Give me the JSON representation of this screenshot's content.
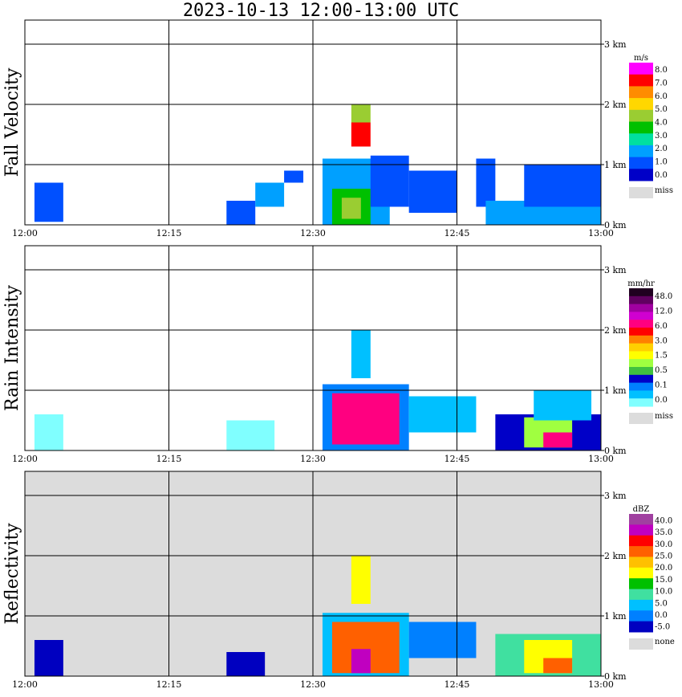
{
  "title": "2023-10-13   12:00-13:00 UTC",
  "colors": {
    "frame": "#000000",
    "missing": "#dcdcdc",
    "panel_bg_reflectivity": "#dcdcdc"
  },
  "chart_data": [
    {
      "type": "heatmap",
      "ylabel": "Fall Velocity",
      "x_tick_labels": [
        "12:00",
        "12:15",
        "12:30",
        "12:45",
        "13:00"
      ],
      "y_tick_labels": [
        "0 km",
        "1 km",
        "2 km",
        "3 km"
      ],
      "ylim": [
        0,
        3.4
      ],
      "grid": true,
      "colorbar": {
        "unit": "m/s",
        "labels": [
          "8.0",
          "7.0",
          "6.0",
          "5.0",
          "4.0",
          "3.0",
          "2.0",
          "1.0",
          "0.0"
        ],
        "colors": [
          "#ff00ff",
          "#ff0000",
          "#ff8c00",
          "#ffd700",
          "#9acd32",
          "#00c000",
          "#00e0a0",
          "#00a0ff",
          "#0050ff",
          "#0000c8"
        ],
        "missing_label": "miss"
      },
      "regions": [
        {
          "t0": 1,
          "t1": 4,
          "h0": 0.05,
          "h1": 0.7,
          "level": 8
        },
        {
          "t0": 21,
          "t1": 24,
          "h0": 0,
          "h1": 0.4,
          "level": 8
        },
        {
          "t0": 24,
          "t1": 27,
          "h0": 0.3,
          "h1": 0.7,
          "level": 7
        },
        {
          "t0": 27,
          "t1": 29,
          "h0": 0.7,
          "h1": 0.9,
          "level": 8
        },
        {
          "t0": 31,
          "t1": 38,
          "h0": 0,
          "h1": 1.1,
          "level": 7
        },
        {
          "t0": 32,
          "t1": 36,
          "h0": 0,
          "h1": 0.6,
          "level": 5
        },
        {
          "t0": 33,
          "t1": 35,
          "h0": 0.1,
          "h1": 0.45,
          "level": 4
        },
        {
          "t0": 34,
          "t1": 36,
          "h0": 1.3,
          "h1": 1.7,
          "level": 1
        },
        {
          "t0": 34,
          "t1": 36,
          "h0": 1.7,
          "h1": 2.0,
          "level": 4
        },
        {
          "t0": 36,
          "t1": 40,
          "h0": 0.3,
          "h1": 1.15,
          "level": 8
        },
        {
          "t0": 40,
          "t1": 45,
          "h0": 0.2,
          "h1": 0.9,
          "level": 8
        },
        {
          "t0": 47,
          "t1": 49,
          "h0": 0.3,
          "h1": 1.1,
          "level": 8
        },
        {
          "t0": 48,
          "t1": 60,
          "h0": 0,
          "h1": 0.4,
          "level": 7
        },
        {
          "t0": 52,
          "t1": 60,
          "h0": 0.3,
          "h1": 1.0,
          "level": 8
        }
      ]
    },
    {
      "type": "heatmap",
      "ylabel": "Rain Intensity",
      "x_tick_labels": [
        "12:00",
        "12:15",
        "12:30",
        "12:45",
        "13:00"
      ],
      "y_tick_labels": [
        "0 km",
        "1 km",
        "2 km",
        "3 km"
      ],
      "ylim": [
        0,
        3.4
      ],
      "grid": true,
      "colorbar": {
        "unit": "mm/hr",
        "labels": [
          "48.0",
          "12.0",
          "6.0",
          "3.0",
          "1.5",
          "0.5",
          "0.1",
          "0.0"
        ],
        "colors": [
          "#200020",
          "#600060",
          "#a000a0",
          "#d000d0",
          "#ff0080",
          "#ff0000",
          "#ff8000",
          "#ffd000",
          "#ffff00",
          "#a0ff40",
          "#40c040",
          "#0000c8",
          "#0080ff",
          "#00c0ff",
          "#80ffff"
        ],
        "missing_label": "miss"
      },
      "regions": [
        {
          "t0": 1,
          "t1": 4,
          "h0": 0,
          "h1": 0.6,
          "level": 14
        },
        {
          "t0": 21,
          "t1": 26,
          "h0": 0,
          "h1": 0.5,
          "level": 14
        },
        {
          "t0": 31,
          "t1": 40,
          "h0": 0,
          "h1": 1.1,
          "level": 12
        },
        {
          "t0": 32,
          "t1": 39,
          "h0": 0.1,
          "h1": 0.95,
          "level": 4
        },
        {
          "t0": 34,
          "t1": 36,
          "h0": 1.2,
          "h1": 2.0,
          "level": 13
        },
        {
          "t0": 40,
          "t1": 47,
          "h0": 0.3,
          "h1": 0.9,
          "level": 13
        },
        {
          "t0": 49,
          "t1": 60,
          "h0": 0,
          "h1": 0.6,
          "level": 11
        },
        {
          "t0": 52,
          "t1": 57,
          "h0": 0.05,
          "h1": 0.55,
          "level": 9
        },
        {
          "t0": 54,
          "t1": 57,
          "h0": 0.05,
          "h1": 0.3,
          "level": 4
        },
        {
          "t0": 53,
          "t1": 59,
          "h0": 0.5,
          "h1": 1.0,
          "level": 13
        }
      ]
    },
    {
      "type": "heatmap",
      "ylabel": "Reflectivity",
      "x_tick_labels": [
        "12:00",
        "12:15",
        "12:30",
        "12:45",
        "13:00"
      ],
      "y_tick_labels": [
        "0 km",
        "1 km",
        "2 km",
        "3 km"
      ],
      "ylim": [
        0,
        3.4
      ],
      "grid": true,
      "colorbar": {
        "unit": "dBZ",
        "labels": [
          "40.0",
          "35.0",
          "30.0",
          "25.0",
          "20.0",
          "15.0",
          "10.0",
          "5.0",
          "0.0",
          "-5.0"
        ],
        "colors": [
          "#a040a0",
          "#c000c0",
          "#ff0000",
          "#ff6000",
          "#ffc000",
          "#ffff00",
          "#00c000",
          "#40e0a0",
          "#00c0ff",
          "#0080ff",
          "#0000c0"
        ],
        "missing_label": "none"
      },
      "regions": [
        {
          "t0": 1,
          "t1": 4,
          "h0": 0,
          "h1": 0.6,
          "level": 10
        },
        {
          "t0": 21,
          "t1": 25,
          "h0": 0,
          "h1": 0.4,
          "level": 10
        },
        {
          "t0": 31,
          "t1": 40,
          "h0": 0,
          "h1": 1.05,
          "level": 8
        },
        {
          "t0": 32,
          "t1": 39,
          "h0": 0.05,
          "h1": 0.9,
          "level": 3
        },
        {
          "t0": 34,
          "t1": 36,
          "h0": 0.05,
          "h1": 0.45,
          "level": 1
        },
        {
          "t0": 34,
          "t1": 36,
          "h0": 1.2,
          "h1": 2.0,
          "level": 5
        },
        {
          "t0": 40,
          "t1": 47,
          "h0": 0.3,
          "h1": 0.9,
          "level": 9
        },
        {
          "t0": 49,
          "t1": 60,
          "h0": 0,
          "h1": 0.7,
          "level": 7
        },
        {
          "t0": 52,
          "t1": 57,
          "h0": 0.05,
          "h1": 0.6,
          "level": 5
        },
        {
          "t0": 54,
          "t1": 57,
          "h0": 0.05,
          "h1": 0.3,
          "level": 3
        }
      ]
    }
  ]
}
